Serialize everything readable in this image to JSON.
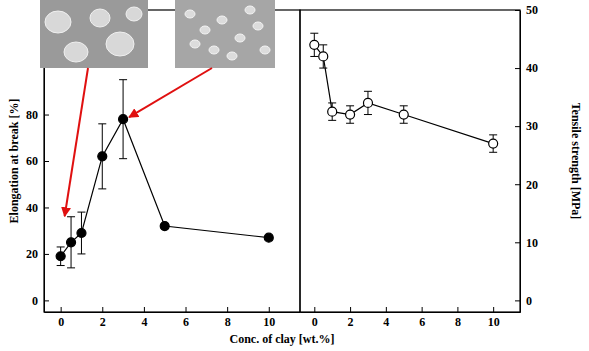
{
  "chart_data": [
    {
      "type": "line",
      "x_label": "Conc. of clay [wt.%]",
      "y_label": "Elongation at break [%]",
      "x": [
        0,
        0.5,
        1,
        2,
        3,
        5,
        10
      ],
      "series": [
        {
          "color": "#000000",
          "marker": "filled-circle",
          "line_style": "solid",
          "values": [
            19,
            25,
            29,
            62,
            78,
            32,
            27
          ],
          "errors": [
            4,
            11,
            9,
            14,
            17,
            1,
            1
          ]
        }
      ],
      "xlim": [
        -0.8,
        11.5
      ],
      "xticks": [
        0,
        2,
        4,
        6,
        8,
        10
      ],
      "ylim": [
        -5,
        125
      ],
      "yticks": [
        0,
        20,
        40,
        60,
        80
      ]
    },
    {
      "type": "line",
      "y_label": "Tensile strength [MPa]",
      "x": [
        0,
        0.5,
        1,
        2,
        3,
        5,
        10
      ],
      "series": [
        {
          "color": "#000000",
          "marker": "open-circle",
          "line_style": "solid",
          "values": [
            44,
            42,
            32.5,
            32,
            34,
            32,
            27
          ],
          "errors": [
            2,
            2,
            1.5,
            1.5,
            2,
            1.5,
            1.5
          ]
        }
      ],
      "xlim": [
        -0.8,
        11.5
      ],
      "xticks": [
        0,
        2,
        4,
        6,
        8,
        10
      ],
      "ylim": [
        -2,
        50
      ],
      "yticks": [
        0,
        10,
        20,
        30,
        40,
        50
      ]
    }
  ]
}
